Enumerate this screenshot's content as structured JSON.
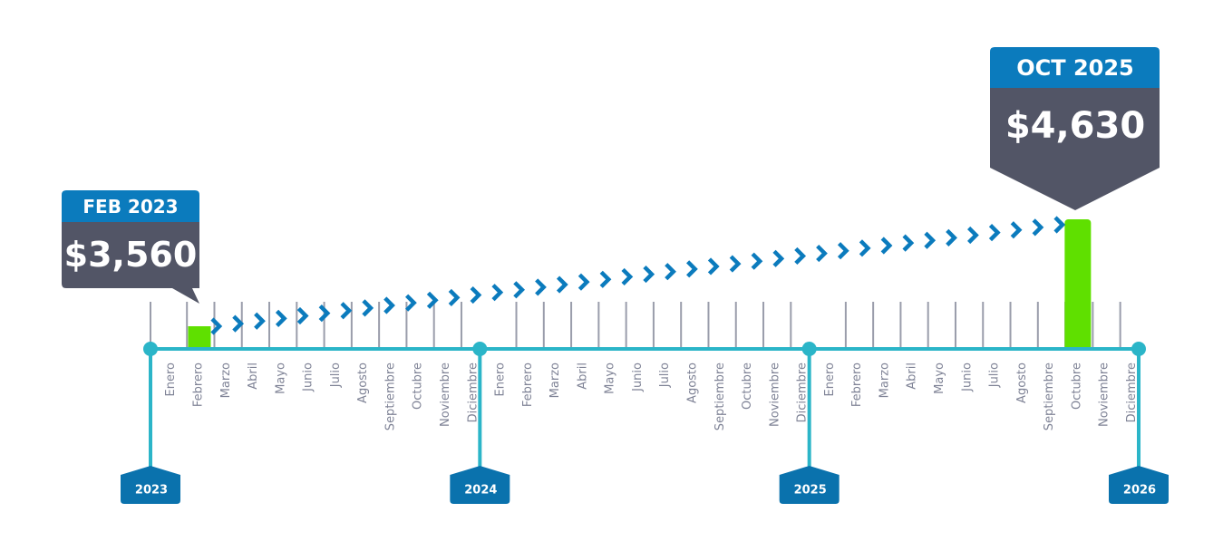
{
  "callouts": [
    {
      "date": "FEB 2023",
      "amount": "$3,560"
    },
    {
      "date": "OCT 2025",
      "amount": "$4,630"
    }
  ],
  "years": [
    {
      "label": "2023",
      "months": [
        "Enero",
        "Febrero",
        "Marzo",
        "Abril",
        "Mayo",
        "Junio",
        "Julio",
        "Agosto",
        "Septiembre",
        "Octubre",
        "Noviembre",
        "Diciembre"
      ]
    },
    {
      "label": "2024",
      "months": [
        "Enero",
        "Febrero",
        "Marzo",
        "Abril",
        "Mayo",
        "Junio",
        "Julio",
        "Agosto",
        "Septiembre",
        "Octubre",
        "Noviembre",
        "Diciembre"
      ]
    },
    {
      "label": "2025",
      "months": [
        "Enero",
        "Febrero",
        "Marzo",
        "Abril",
        "Mayo",
        "Junio",
        "Julio",
        "Agosto",
        "Septiembre",
        "Octubre",
        "Noviembre",
        "Diciembre"
      ]
    }
  ],
  "end_year": "2026"
}
